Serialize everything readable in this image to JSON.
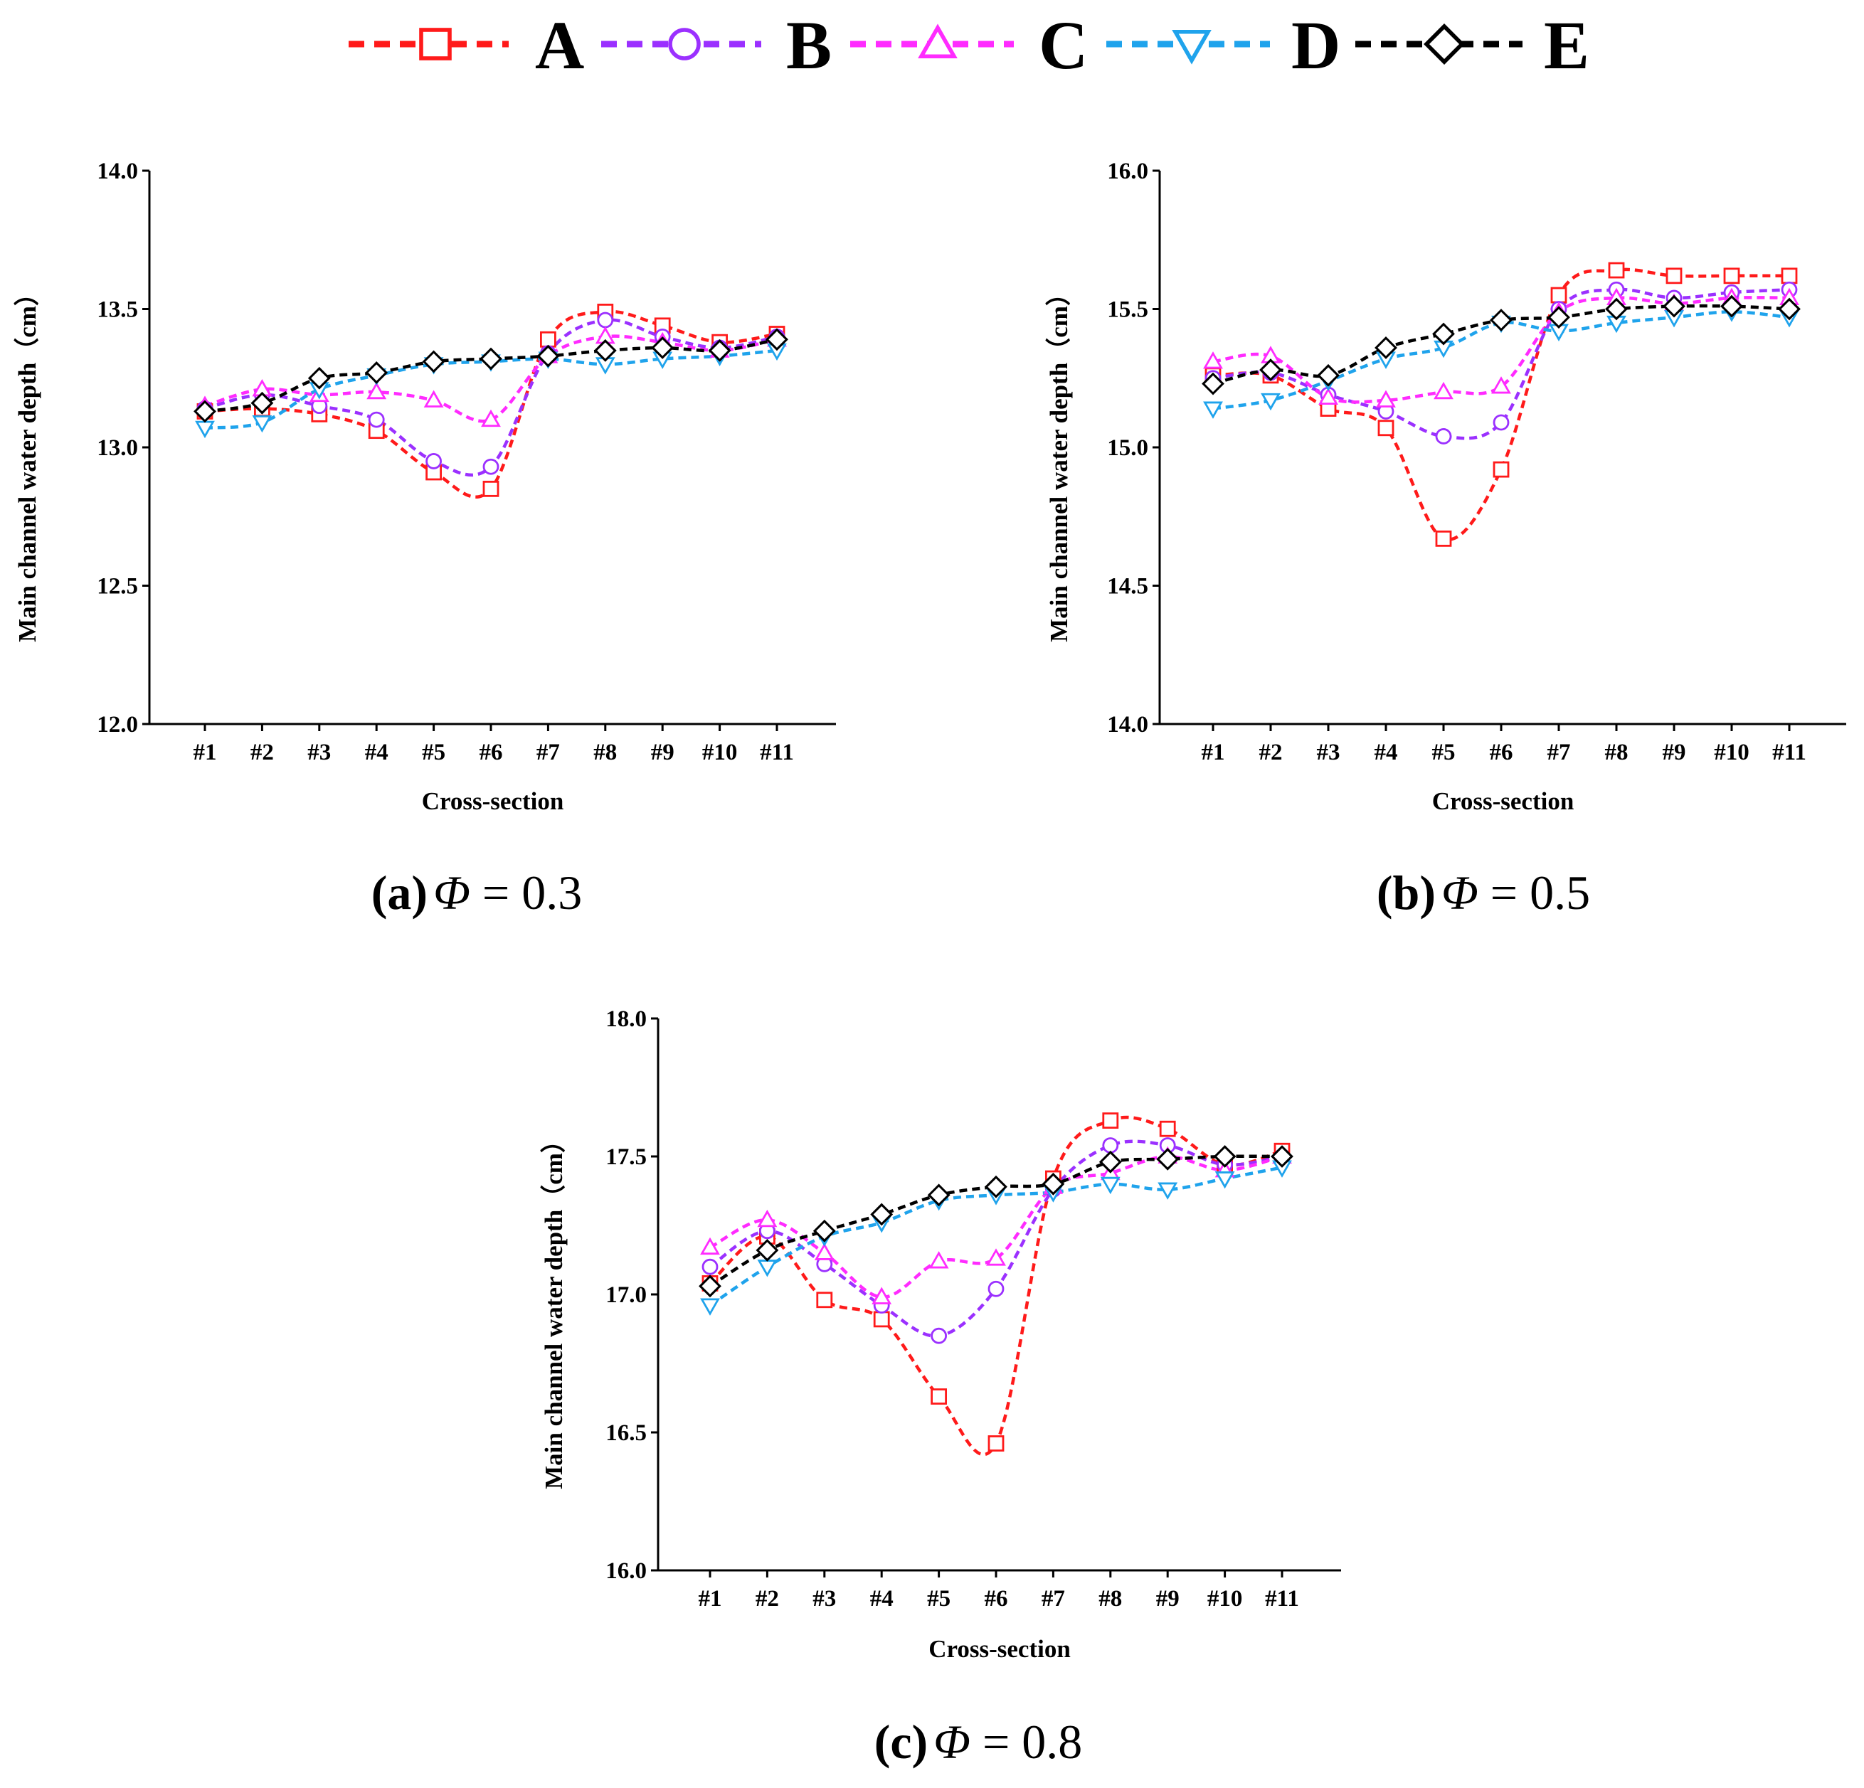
{
  "legend": [
    {
      "key": "A",
      "label": "A",
      "color": "#ff1a1a",
      "marker": "square"
    },
    {
      "key": "B",
      "label": "B",
      "color": "#9b30ff",
      "marker": "circle"
    },
    {
      "key": "C",
      "label": "C",
      "color": "#ff2bff",
      "marker": "triangle-up"
    },
    {
      "key": "D",
      "label": "D",
      "color": "#1fa3ec",
      "marker": "triangle-down"
    },
    {
      "key": "E",
      "label": "E",
      "color": "#000000",
      "marker": "diamond"
    }
  ],
  "chart_data": [
    {
      "type": "line",
      "panel": "a",
      "caption": {
        "letter": "(a)",
        "phi_symbol": "Φ",
        "rest": " = 0.3"
      },
      "xlabel": "Cross-section",
      "ylabel": "Main channel water depth（cm）",
      "categories": [
        "#1",
        "#2",
        "#3",
        "#4",
        "#5",
        "#6",
        "#7",
        "#8",
        "#9",
        "#10",
        "#11"
      ],
      "ylim": [
        12.0,
        14.0
      ],
      "yticks": [
        "12.0",
        "12.5",
        "13.0",
        "13.5",
        "14.0"
      ],
      "series": [
        {
          "name": "A",
          "values": [
            13.13,
            13.14,
            13.12,
            13.06,
            12.91,
            12.85,
            13.39,
            13.49,
            13.44,
            13.38,
            13.41
          ]
        },
        {
          "name": "B",
          "values": [
            13.14,
            13.19,
            13.15,
            13.1,
            12.95,
            12.93,
            13.34,
            13.46,
            13.4,
            13.36,
            13.4
          ]
        },
        {
          "name": "C",
          "values": [
            13.15,
            13.21,
            13.19,
            13.2,
            13.17,
            13.1,
            13.33,
            13.4,
            13.38,
            13.35,
            13.39
          ]
        },
        {
          "name": "D",
          "values": [
            13.07,
            13.09,
            13.21,
            13.26,
            13.3,
            13.31,
            13.32,
            13.3,
            13.32,
            13.33,
            13.35
          ]
        },
        {
          "name": "E",
          "values": [
            13.13,
            13.16,
            13.25,
            13.27,
            13.31,
            13.32,
            13.33,
            13.35,
            13.36,
            13.35,
            13.39
          ]
        }
      ]
    },
    {
      "type": "line",
      "panel": "b",
      "caption": {
        "letter": "(b)",
        "phi_symbol": "Φ",
        "rest": " = 0.5"
      },
      "xlabel": "Cross-section",
      "ylabel": "Main channel water depth（cm）",
      "categories": [
        "#1",
        "#2",
        "#3",
        "#4",
        "#5",
        "#6",
        "#7",
        "#8",
        "#9",
        "#10",
        "#11"
      ],
      "ylim": [
        14.0,
        16.0
      ],
      "yticks": [
        "14.0",
        "14.5",
        "15.0",
        "15.5",
        "16.0"
      ],
      "series": [
        {
          "name": "A",
          "values": [
            15.26,
            15.26,
            15.14,
            15.07,
            14.67,
            14.92,
            15.55,
            15.64,
            15.62,
            15.62,
            15.62
          ]
        },
        {
          "name": "B",
          "values": [
            15.25,
            15.27,
            15.19,
            15.13,
            15.04,
            15.09,
            15.5,
            15.57,
            15.54,
            15.56,
            15.57
          ]
        },
        {
          "name": "C",
          "values": [
            15.31,
            15.33,
            15.18,
            15.17,
            15.2,
            15.22,
            15.49,
            15.54,
            15.52,
            15.54,
            15.54
          ]
        },
        {
          "name": "D",
          "values": [
            15.14,
            15.17,
            15.24,
            15.32,
            15.36,
            15.45,
            15.42,
            15.45,
            15.47,
            15.49,
            15.47
          ]
        },
        {
          "name": "E",
          "values": [
            15.23,
            15.28,
            15.26,
            15.36,
            15.41,
            15.46,
            15.47,
            15.5,
            15.51,
            15.51,
            15.5
          ]
        }
      ]
    },
    {
      "type": "line",
      "panel": "c",
      "caption": {
        "letter": "(c)",
        "phi_symbol": "Φ",
        "rest": " = 0.8"
      },
      "xlabel": "Cross-section",
      "ylabel": "Main channel water depth（cm）",
      "categories": [
        "#1",
        "#2",
        "#3",
        "#4",
        "#5",
        "#6",
        "#7",
        "#8",
        "#9",
        "#10",
        "#11"
      ],
      "ylim": [
        16.0,
        18.0
      ],
      "yticks": [
        "16.0",
        "16.5",
        "17.0",
        "17.5",
        "18.0"
      ],
      "series": [
        {
          "name": "A",
          "values": [
            17.04,
            17.21,
            16.98,
            16.91,
            16.63,
            16.46,
            17.42,
            17.63,
            17.6,
            17.47,
            17.52
          ]
        },
        {
          "name": "B",
          "values": [
            17.1,
            17.23,
            17.11,
            16.96,
            16.85,
            17.02,
            17.38,
            17.54,
            17.54,
            17.47,
            17.5
          ]
        },
        {
          "name": "C",
          "values": [
            17.17,
            17.27,
            17.15,
            16.99,
            17.12,
            17.13,
            17.39,
            17.44,
            17.5,
            17.45,
            17.5
          ]
        },
        {
          "name": "D",
          "values": [
            16.96,
            17.1,
            17.21,
            17.26,
            17.34,
            17.36,
            17.37,
            17.4,
            17.38,
            17.42,
            17.46
          ]
        },
        {
          "name": "E",
          "values": [
            17.03,
            17.16,
            17.23,
            17.29,
            17.36,
            17.39,
            17.4,
            17.48,
            17.49,
            17.5,
            17.5
          ]
        }
      ]
    }
  ]
}
